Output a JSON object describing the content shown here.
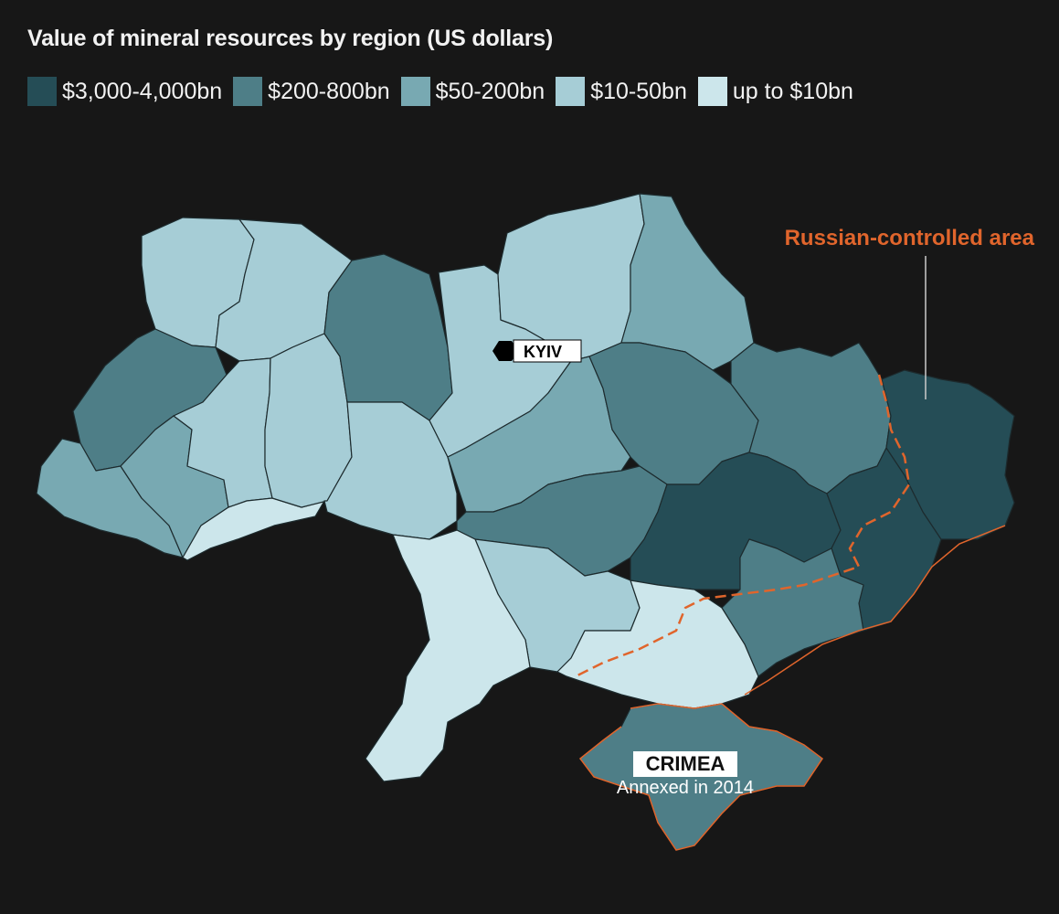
{
  "title": "Value of mineral resources by region (US dollars)",
  "legend": [
    {
      "label": "$3,000-4,000bn",
      "color": "#254d56"
    },
    {
      "label": "$200-800bn",
      "color": "#4e7e87"
    },
    {
      "label": "$50-200bn",
      "color": "#78a9b2"
    },
    {
      "label": "$10-50bn",
      "color": "#a6cdd6"
    },
    {
      "label": "up to $10bn",
      "color": "#cce6eb"
    }
  ],
  "annotations": {
    "russian_area": "Russian-controlled area",
    "kyiv": "KYIV",
    "crimea": "CRIMEA",
    "crimea_note": "Annexed in 2014"
  },
  "colors": {
    "background": "#171717",
    "border_dashed": "#e0652c",
    "region_border": "#1d2b2e"
  }
}
